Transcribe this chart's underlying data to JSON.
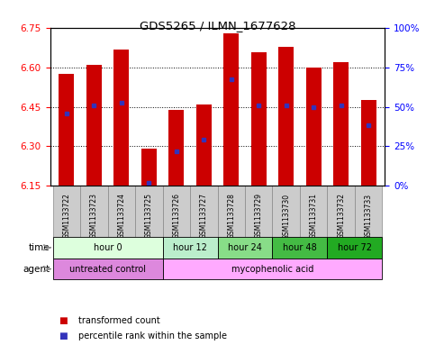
{
  "title": "GDS5265 / ILMN_1677628",
  "samples": [
    "GSM1133722",
    "GSM1133723",
    "GSM1133724",
    "GSM1133725",
    "GSM1133726",
    "GSM1133727",
    "GSM1133728",
    "GSM1133729",
    "GSM1133730",
    "GSM1133731",
    "GSM1133732",
    "GSM1133733"
  ],
  "bar_bottom": 6.15,
  "bar_tops": [
    6.575,
    6.61,
    6.67,
    6.29,
    6.44,
    6.46,
    6.73,
    6.66,
    6.68,
    6.6,
    6.62,
    6.475
  ],
  "blue_positions": [
    6.425,
    6.455,
    6.465,
    6.16,
    6.28,
    6.325,
    6.555,
    6.455,
    6.455,
    6.45,
    6.455,
    6.38
  ],
  "ylim_left": [
    6.15,
    6.75
  ],
  "ylim_right": [
    0,
    100
  ],
  "yticks_left": [
    6.15,
    6.3,
    6.45,
    6.6,
    6.75
  ],
  "yticks_right": [
    0,
    25,
    50,
    75,
    100
  ],
  "ytick_labels_right": [
    "0%",
    "25%",
    "50%",
    "75%",
    "100%"
  ],
  "bar_color": "#cc0000",
  "blue_color": "#3333bb",
  "bar_width": 0.55,
  "time_group_configs": [
    {
      "label": "hour 0",
      "cols": [
        0,
        1,
        2,
        3
      ],
      "color": "#ddffdd"
    },
    {
      "label": "hour 12",
      "cols": [
        4,
        5
      ],
      "color": "#bbeecc"
    },
    {
      "label": "hour 24",
      "cols": [
        6,
        7
      ],
      "color": "#88dd88"
    },
    {
      "label": "hour 48",
      "cols": [
        8,
        9
      ],
      "color": "#44bb44"
    },
    {
      "label": "hour 72",
      "cols": [
        10,
        11
      ],
      "color": "#22aa22"
    }
  ],
  "agent_group_configs": [
    {
      "label": "untreated control",
      "cols": [
        0,
        1,
        2,
        3
      ],
      "color": "#dd88dd"
    },
    {
      "label": "mycophenolic acid",
      "cols": [
        4,
        5,
        6,
        7,
        8,
        9,
        10,
        11
      ],
      "color": "#ffaaff"
    }
  ],
  "legend_items": [
    {
      "color": "#cc0000",
      "label": "transformed count"
    },
    {
      "color": "#3333bb",
      "label": "percentile rank within the sample"
    }
  ],
  "sample_box_color": "#cccccc",
  "sample_box_edge": "#888888"
}
